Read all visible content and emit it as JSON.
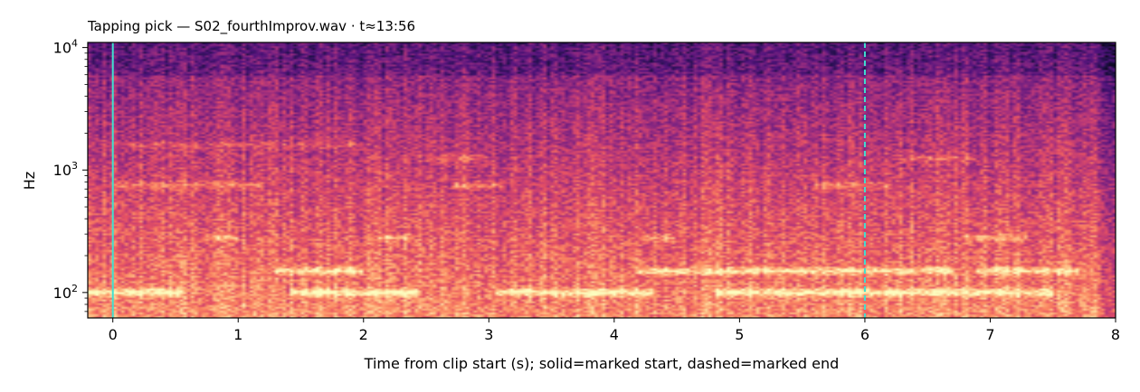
{
  "chart_data": {
    "type": "heatmap",
    "title": "Tapping pick  —  S02_fourthImprov.wav · t≈13:56",
    "xlabel": "Time from clip start (s); solid=marked start, dashed=marked end",
    "ylabel": "Hz",
    "xlim": [
      -0.2,
      8.0
    ],
    "ylim": [
      62,
      11000
    ],
    "y_scale": "log",
    "x_ticks": [
      0,
      1,
      2,
      3,
      4,
      5,
      6,
      7,
      8
    ],
    "x_tick_labels": [
      "0",
      "1",
      "2",
      "3",
      "4",
      "5",
      "6",
      "7",
      "8"
    ],
    "y_ticks": [
      {
        "base": "10",
        "exp": "2",
        "value": 100
      },
      {
        "base": "10",
        "exp": "3",
        "value": 1000
      },
      {
        "base": "10",
        "exp": "4",
        "value": 10000
      }
    ],
    "colormap": "magma",
    "markers": [
      {
        "name": "marked start",
        "x": 0.0,
        "style": "solid",
        "color": "#40e0d0"
      },
      {
        "name": "marked end",
        "x": 6.0,
        "style": "dashed",
        "color": "#40e0d0"
      }
    ],
    "bands": [
      {
        "hz": 100,
        "segments": [
          [
            -0.2,
            0.55
          ],
          [
            1.4,
            2.45
          ],
          [
            3.05,
            4.3
          ],
          [
            4.8,
            7.5
          ]
        ],
        "strength": 0.9
      },
      {
        "hz": 150,
        "segments": [
          [
            1.3,
            2.0
          ],
          [
            4.2,
            6.7
          ],
          [
            6.9,
            7.7
          ]
        ],
        "strength": 0.8
      },
      {
        "hz": 280,
        "segments": [
          [
            0.7,
            1.0
          ],
          [
            2.1,
            2.4
          ],
          [
            4.2,
            4.5
          ],
          [
            6.8,
            7.3
          ]
        ],
        "strength": 0.55
      },
      {
        "hz": 750,
        "segments": [
          [
            0.0,
            1.2
          ],
          [
            2.7,
            3.1
          ],
          [
            5.6,
            6.2
          ]
        ],
        "strength": 0.5
      },
      {
        "hz": 1250,
        "segments": [
          [
            2.5,
            3.0
          ],
          [
            6.3,
            6.9
          ]
        ],
        "strength": 0.45
      },
      {
        "hz": 1600,
        "segments": [
          [
            0.1,
            2.0
          ]
        ],
        "strength": 0.35
      }
    ]
  }
}
